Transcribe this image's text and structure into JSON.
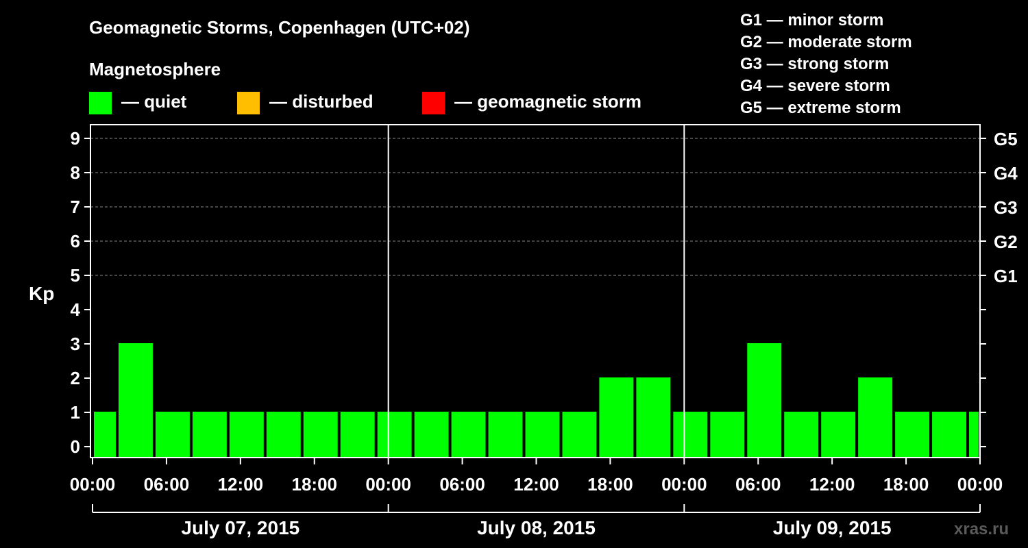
{
  "title": "Geomagnetic Storms, Copenhagen (UTC+02)",
  "legend": {
    "heading": "Magnetosphere",
    "items": [
      {
        "label": "— quiet",
        "color": "#00ff00"
      },
      {
        "label": "— disturbed",
        "color": "#ffbf00"
      },
      {
        "label": "— geomagnetic storm",
        "color": "#ff0000"
      }
    ]
  },
  "storm_scale": [
    "G1 — minor storm",
    "G2 — moderate storm",
    "G3 — strong storm",
    "G4 — severe storm",
    "G5 — extreme storm"
  ],
  "watermark": "xras.ru",
  "chart_data": {
    "type": "bar",
    "title": "Geomagnetic Storms, Copenhagen (UTC+02)",
    "ylabel": "Kp",
    "xlabel": "",
    "ylim": [
      0,
      9
    ],
    "y_ticks": [
      "0",
      "1",
      "2",
      "3",
      "4",
      "5",
      "6",
      "7",
      "8",
      "9"
    ],
    "right_axis_labels": [
      {
        "kp": 5,
        "label": "G1"
      },
      {
        "kp": 6,
        "label": "G2"
      },
      {
        "kp": 7,
        "label": "G3"
      },
      {
        "kp": 8,
        "label": "G4"
      },
      {
        "kp": 9,
        "label": "G5"
      }
    ],
    "x_ticks": [
      "00:00",
      "06:00",
      "12:00",
      "18:00",
      "00:00",
      "06:00",
      "12:00",
      "18:00",
      "00:00",
      "06:00",
      "12:00",
      "18:00",
      "00:00"
    ],
    "days": [
      "July 07, 2015",
      "July 08, 2015",
      "July 09, 2015"
    ],
    "interval_hours": 3,
    "x_start_hour": 0,
    "x_end_hour": 72,
    "bars": [
      {
        "start": 0,
        "end": 2,
        "kp": 1
      },
      {
        "start": 2,
        "end": 5,
        "kp": 3
      },
      {
        "start": 5,
        "end": 8,
        "kp": 1
      },
      {
        "start": 8,
        "end": 11,
        "kp": 1
      },
      {
        "start": 11,
        "end": 14,
        "kp": 1
      },
      {
        "start": 14,
        "end": 17,
        "kp": 1
      },
      {
        "start": 17,
        "end": 20,
        "kp": 1
      },
      {
        "start": 20,
        "end": 23,
        "kp": 1
      },
      {
        "start": 23,
        "end": 26,
        "kp": 1
      },
      {
        "start": 26,
        "end": 29,
        "kp": 1
      },
      {
        "start": 29,
        "end": 32,
        "kp": 1
      },
      {
        "start": 32,
        "end": 35,
        "kp": 1
      },
      {
        "start": 35,
        "end": 38,
        "kp": 1
      },
      {
        "start": 38,
        "end": 41,
        "kp": 1
      },
      {
        "start": 41,
        "end": 44,
        "kp": 2
      },
      {
        "start": 44,
        "end": 47,
        "kp": 2
      },
      {
        "start": 47,
        "end": 50,
        "kp": 1
      },
      {
        "start": 50,
        "end": 53,
        "kp": 1
      },
      {
        "start": 53,
        "end": 56,
        "kp": 3
      },
      {
        "start": 56,
        "end": 59,
        "kp": 1
      },
      {
        "start": 59,
        "end": 62,
        "kp": 1
      },
      {
        "start": 62,
        "end": 65,
        "kp": 2
      },
      {
        "start": 65,
        "end": 68,
        "kp": 1
      },
      {
        "start": 68,
        "end": 71,
        "kp": 1
      },
      {
        "start": 71,
        "end": 72,
        "kp": 1
      }
    ]
  }
}
